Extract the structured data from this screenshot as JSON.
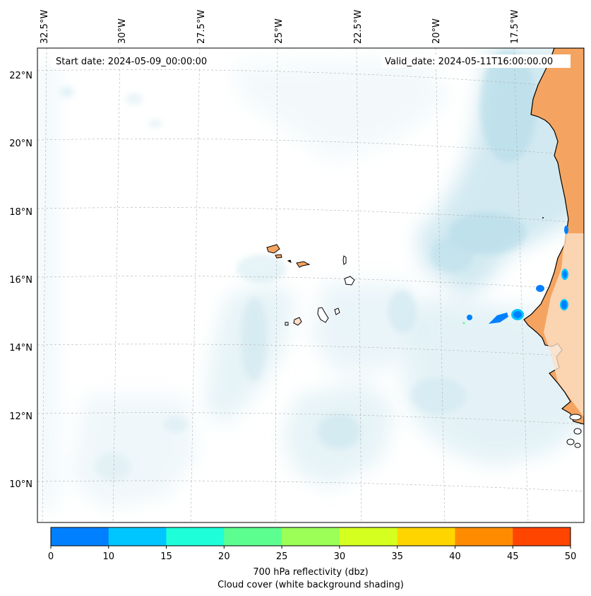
{
  "annotations": {
    "start_date": "Start date: 2024-05-09_00:00:00",
    "valid_date": "Valid_date: 2024-05-11T16:00:00.00"
  },
  "longitude_ticks": [
    "32.5°W",
    "30°W",
    "27.5°W",
    "25°W",
    "22.5°W",
    "20°W",
    "17.5°W"
  ],
  "latitude_ticks": [
    "22°N",
    "20°N",
    "18°N",
    "16°N",
    "14°N",
    "12°N",
    "10°N"
  ],
  "colorbar": {
    "ticks": [
      "0",
      "10",
      "15",
      "20",
      "25",
      "30",
      "35",
      "40",
      "45",
      "50"
    ],
    "colors": [
      "#0080ff",
      "#00c6ff",
      "#1effd9",
      "#5cff8f",
      "#9bff57",
      "#d4ff1f",
      "#ffd500",
      "#ff8c00",
      "#ff4500"
    ],
    "label_line1": "700 hPa reflectivity (dbz)",
    "label_line2": "Cloud cover (white background shading)"
  },
  "colors": {
    "cloud_shading": "#add8e6",
    "land": "#f4a460",
    "coastline": "#000000",
    "gridline": "#b0b0b0"
  }
}
